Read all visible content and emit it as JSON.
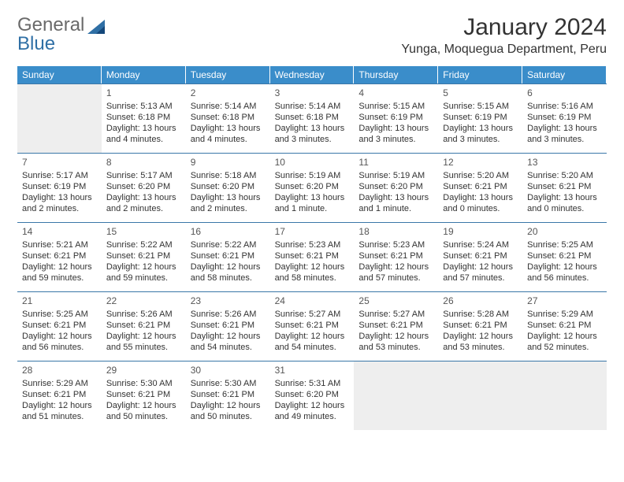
{
  "brand": {
    "text_a": "General",
    "text_b": "Blue"
  },
  "header": {
    "month_title": "January 2024",
    "location": "Yunga, Moquegua Department, Peru"
  },
  "colors": {
    "header_bar": "#3a8dca",
    "rule": "#3a77a8",
    "blank_bg": "#eeeeee",
    "text": "#333333",
    "logo_gray": "#6a6a6a",
    "logo_blue": "#2f6fa5"
  },
  "days_of_week": [
    "Sunday",
    "Monday",
    "Tuesday",
    "Wednesday",
    "Thursday",
    "Friday",
    "Saturday"
  ],
  "calendar": {
    "leading_blanks": 1,
    "days": [
      {
        "n": 1,
        "sunrise": "5:13 AM",
        "sunset": "6:18 PM",
        "daylight": "13 hours and 4 minutes."
      },
      {
        "n": 2,
        "sunrise": "5:14 AM",
        "sunset": "6:18 PM",
        "daylight": "13 hours and 4 minutes."
      },
      {
        "n": 3,
        "sunrise": "5:14 AM",
        "sunset": "6:18 PM",
        "daylight": "13 hours and 3 minutes."
      },
      {
        "n": 4,
        "sunrise": "5:15 AM",
        "sunset": "6:19 PM",
        "daylight": "13 hours and 3 minutes."
      },
      {
        "n": 5,
        "sunrise": "5:15 AM",
        "sunset": "6:19 PM",
        "daylight": "13 hours and 3 minutes."
      },
      {
        "n": 6,
        "sunrise": "5:16 AM",
        "sunset": "6:19 PM",
        "daylight": "13 hours and 3 minutes."
      },
      {
        "n": 7,
        "sunrise": "5:17 AM",
        "sunset": "6:19 PM",
        "daylight": "13 hours and 2 minutes."
      },
      {
        "n": 8,
        "sunrise": "5:17 AM",
        "sunset": "6:20 PM",
        "daylight": "13 hours and 2 minutes."
      },
      {
        "n": 9,
        "sunrise": "5:18 AM",
        "sunset": "6:20 PM",
        "daylight": "13 hours and 2 minutes."
      },
      {
        "n": 10,
        "sunrise": "5:19 AM",
        "sunset": "6:20 PM",
        "daylight": "13 hours and 1 minute."
      },
      {
        "n": 11,
        "sunrise": "5:19 AM",
        "sunset": "6:20 PM",
        "daylight": "13 hours and 1 minute."
      },
      {
        "n": 12,
        "sunrise": "5:20 AM",
        "sunset": "6:21 PM",
        "daylight": "13 hours and 0 minutes."
      },
      {
        "n": 13,
        "sunrise": "5:20 AM",
        "sunset": "6:21 PM",
        "daylight": "13 hours and 0 minutes."
      },
      {
        "n": 14,
        "sunrise": "5:21 AM",
        "sunset": "6:21 PM",
        "daylight": "12 hours and 59 minutes."
      },
      {
        "n": 15,
        "sunrise": "5:22 AM",
        "sunset": "6:21 PM",
        "daylight": "12 hours and 59 minutes."
      },
      {
        "n": 16,
        "sunrise": "5:22 AM",
        "sunset": "6:21 PM",
        "daylight": "12 hours and 58 minutes."
      },
      {
        "n": 17,
        "sunrise": "5:23 AM",
        "sunset": "6:21 PM",
        "daylight": "12 hours and 58 minutes."
      },
      {
        "n": 18,
        "sunrise": "5:23 AM",
        "sunset": "6:21 PM",
        "daylight": "12 hours and 57 minutes."
      },
      {
        "n": 19,
        "sunrise": "5:24 AM",
        "sunset": "6:21 PM",
        "daylight": "12 hours and 57 minutes."
      },
      {
        "n": 20,
        "sunrise": "5:25 AM",
        "sunset": "6:21 PM",
        "daylight": "12 hours and 56 minutes."
      },
      {
        "n": 21,
        "sunrise": "5:25 AM",
        "sunset": "6:21 PM",
        "daylight": "12 hours and 56 minutes."
      },
      {
        "n": 22,
        "sunrise": "5:26 AM",
        "sunset": "6:21 PM",
        "daylight": "12 hours and 55 minutes."
      },
      {
        "n": 23,
        "sunrise": "5:26 AM",
        "sunset": "6:21 PM",
        "daylight": "12 hours and 54 minutes."
      },
      {
        "n": 24,
        "sunrise": "5:27 AM",
        "sunset": "6:21 PM",
        "daylight": "12 hours and 54 minutes."
      },
      {
        "n": 25,
        "sunrise": "5:27 AM",
        "sunset": "6:21 PM",
        "daylight": "12 hours and 53 minutes."
      },
      {
        "n": 26,
        "sunrise": "5:28 AM",
        "sunset": "6:21 PM",
        "daylight": "12 hours and 53 minutes."
      },
      {
        "n": 27,
        "sunrise": "5:29 AM",
        "sunset": "6:21 PM",
        "daylight": "12 hours and 52 minutes."
      },
      {
        "n": 28,
        "sunrise": "5:29 AM",
        "sunset": "6:21 PM",
        "daylight": "12 hours and 51 minutes."
      },
      {
        "n": 29,
        "sunrise": "5:30 AM",
        "sunset": "6:21 PM",
        "daylight": "12 hours and 50 minutes."
      },
      {
        "n": 30,
        "sunrise": "5:30 AM",
        "sunset": "6:21 PM",
        "daylight": "12 hours and 50 minutes."
      },
      {
        "n": 31,
        "sunrise": "5:31 AM",
        "sunset": "6:20 PM",
        "daylight": "12 hours and 49 minutes."
      }
    ],
    "trailing_blanks": 3
  },
  "labels": {
    "sunrise_prefix": "Sunrise: ",
    "sunset_prefix": "Sunset: ",
    "daylight_prefix": "Daylight: "
  }
}
